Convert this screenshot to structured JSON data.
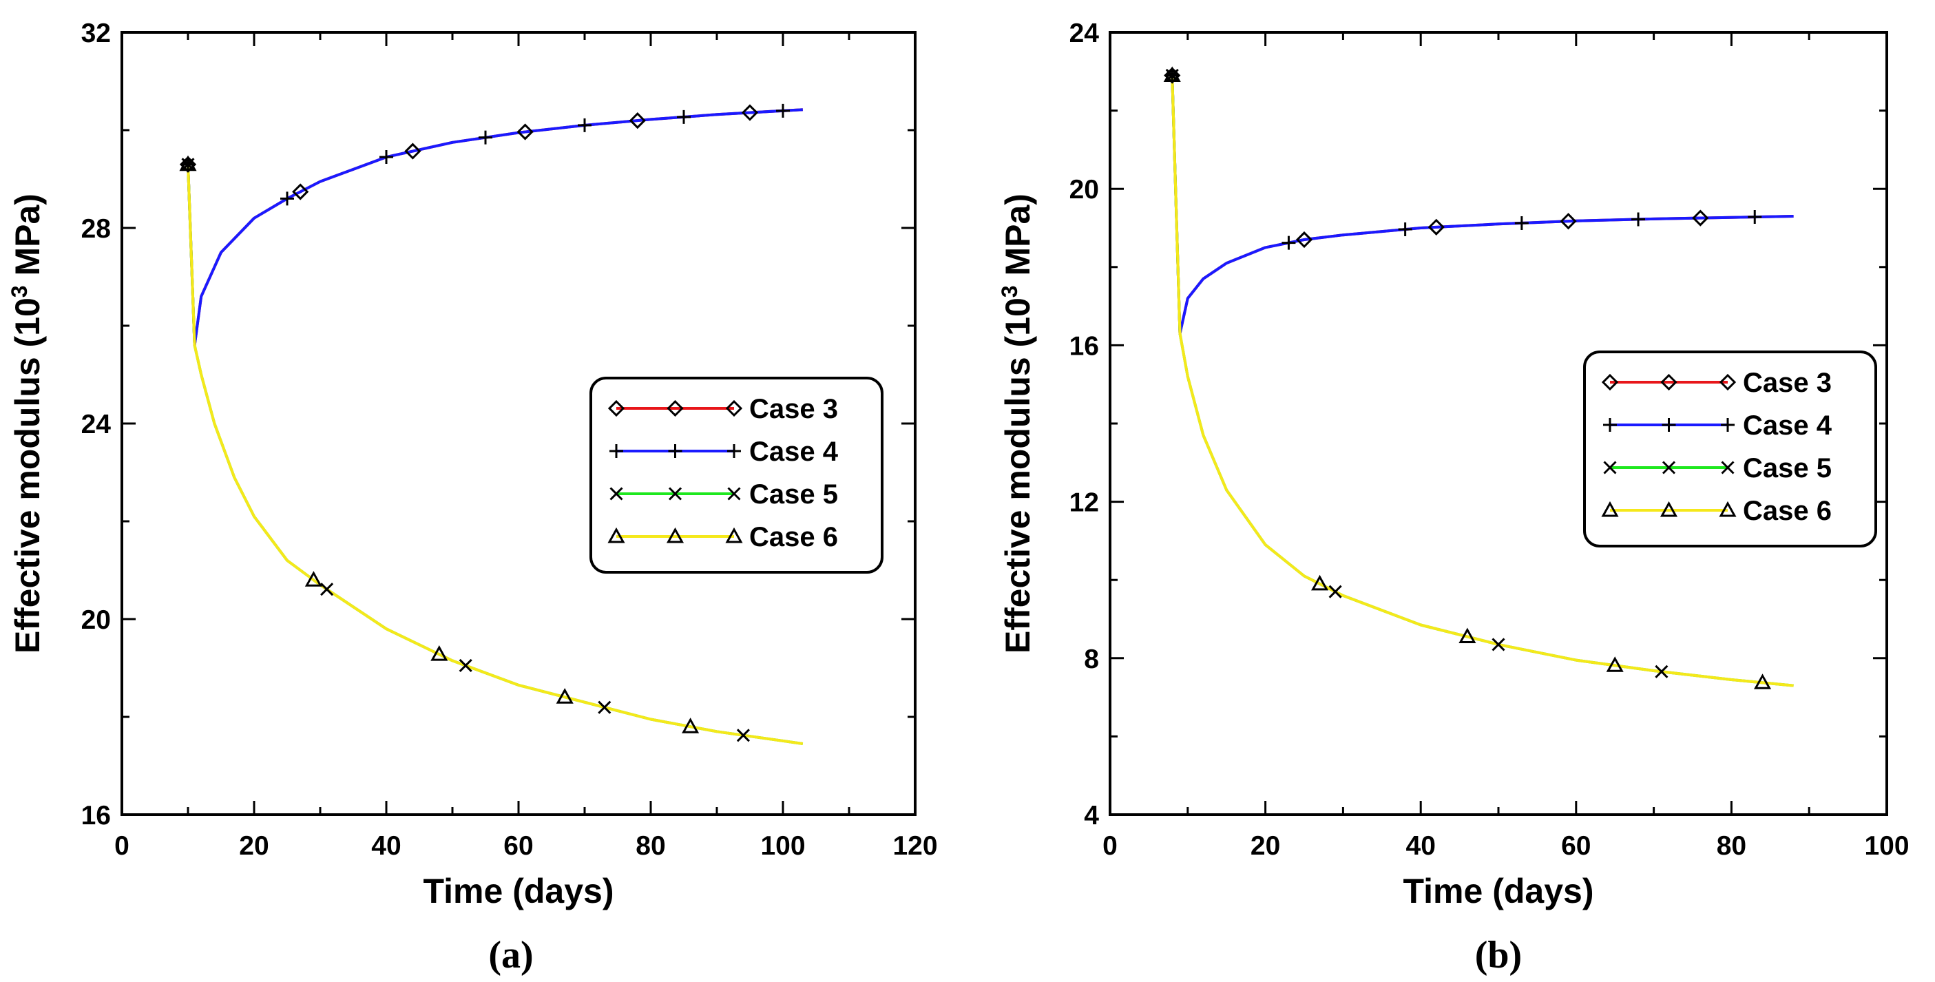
{
  "chart_data": [
    {
      "type": "line",
      "panel_label": "(a)",
      "xlabel": "Time (days)",
      "ylabel": "Effective modulus (10³ MPa)",
      "ylabel_parts": {
        "base": "Effective modulus (10",
        "sup": "3",
        "tail": " MPa)"
      },
      "xlim": [
        0,
        120
      ],
      "ylim": [
        16,
        32
      ],
      "xticks": [
        0,
        20,
        40,
        60,
        80,
        100,
        120
      ],
      "yticks": [
        16,
        20,
        24,
        28,
        32
      ],
      "legend_position": "center-right",
      "series": [
        {
          "name": "Case 3",
          "color": "#e8161a",
          "marker": "diamond",
          "points": [
            [
              10,
              29.3
            ],
            [
              11,
              25.6
            ],
            [
              12,
              26.6
            ],
            [
              15,
              27.5
            ],
            [
              20,
              28.2
            ],
            [
              25,
              28.6
            ],
            [
              30,
              28.95
            ],
            [
              40,
              29.45
            ],
            [
              50,
              29.75
            ],
            [
              60,
              29.95
            ],
            [
              70,
              30.1
            ],
            [
              80,
              30.22
            ],
            [
              90,
              30.32
            ],
            [
              103,
              30.42
            ]
          ],
          "marker_x": [
            27,
            44,
            61,
            78,
            95
          ]
        },
        {
          "name": "Case 4",
          "color": "#1a1aff",
          "marker": "plus",
          "points": [
            [
              10,
              29.3
            ],
            [
              11,
              25.6
            ],
            [
              12,
              26.6
            ],
            [
              15,
              27.5
            ],
            [
              20,
              28.2
            ],
            [
              25,
              28.6
            ],
            [
              30,
              28.95
            ],
            [
              40,
              29.45
            ],
            [
              50,
              29.75
            ],
            [
              60,
              29.95
            ],
            [
              70,
              30.1
            ],
            [
              80,
              30.22
            ],
            [
              90,
              30.32
            ],
            [
              103,
              30.42
            ]
          ],
          "marker_x": [
            25,
            40,
            55,
            70,
            85,
            100
          ]
        },
        {
          "name": "Case 5",
          "color": "#1ee81e",
          "marker": "x",
          "points": [
            [
              10,
              29.3
            ],
            [
              11,
              25.6
            ],
            [
              12,
              25.0
            ],
            [
              14,
              24.0
            ],
            [
              17,
              22.9
            ],
            [
              20,
              22.1
            ],
            [
              25,
              21.2
            ],
            [
              30,
              20.7
            ],
            [
              40,
              19.8
            ],
            [
              50,
              19.15
            ],
            [
              60,
              18.65
            ],
            [
              70,
              18.3
            ],
            [
              80,
              17.95
            ],
            [
              90,
              17.7
            ],
            [
              103,
              17.45
            ]
          ],
          "marker_x": [
            31,
            52,
            73,
            94
          ]
        },
        {
          "name": "Case 6",
          "color": "#f5e81a",
          "marker": "triangle",
          "points": [
            [
              10,
              29.3
            ],
            [
              11,
              25.6
            ],
            [
              12,
              25.0
            ],
            [
              14,
              24.0
            ],
            [
              17,
              22.9
            ],
            [
              20,
              22.1
            ],
            [
              25,
              21.2
            ],
            [
              30,
              20.7
            ],
            [
              40,
              19.8
            ],
            [
              50,
              19.15
            ],
            [
              60,
              18.65
            ],
            [
              70,
              18.3
            ],
            [
              80,
              17.95
            ],
            [
              90,
              17.7
            ],
            [
              103,
              17.45
            ]
          ],
          "marker_x": [
            29,
            48,
            67,
            86
          ]
        }
      ]
    },
    {
      "type": "line",
      "panel_label": "(b)",
      "xlabel": "Time (days)",
      "ylabel": "Effective modulus (10³ MPa)",
      "ylabel_parts": {
        "base": "Effective modulus (10",
        "sup": "3",
        "tail": " MPa)"
      },
      "xlim": [
        0,
        100
      ],
      "ylim": [
        4,
        24
      ],
      "xticks": [
        0,
        20,
        40,
        60,
        80,
        100
      ],
      "yticks": [
        4,
        8,
        12,
        16,
        20,
        24
      ],
      "legend_position": "center-right",
      "series": [
        {
          "name": "Case 3",
          "color": "#e8161a",
          "marker": "diamond",
          "points": [
            [
              8,
              22.9
            ],
            [
              9,
              16.3
            ],
            [
              10,
              17.2
            ],
            [
              12,
              17.7
            ],
            [
              15,
              18.1
            ],
            [
              20,
              18.5
            ],
            [
              25,
              18.7
            ],
            [
              30,
              18.82
            ],
            [
              40,
              19.0
            ],
            [
              50,
              19.1
            ],
            [
              60,
              19.18
            ],
            [
              70,
              19.23
            ],
            [
              80,
              19.27
            ],
            [
              88,
              19.3
            ]
          ],
          "marker_x": [
            25,
            42,
            59,
            76
          ]
        },
        {
          "name": "Case 4",
          "color": "#1a1aff",
          "marker": "plus",
          "points": [
            [
              8,
              22.9
            ],
            [
              9,
              16.3
            ],
            [
              10,
              17.2
            ],
            [
              12,
              17.7
            ],
            [
              15,
              18.1
            ],
            [
              20,
              18.5
            ],
            [
              25,
              18.7
            ],
            [
              30,
              18.82
            ],
            [
              40,
              19.0
            ],
            [
              50,
              19.1
            ],
            [
              60,
              19.18
            ],
            [
              70,
              19.23
            ],
            [
              80,
              19.27
            ],
            [
              88,
              19.3
            ]
          ],
          "marker_x": [
            23,
            38,
            53,
            68,
            83
          ]
        },
        {
          "name": "Case 5",
          "color": "#1ee81e",
          "marker": "x",
          "points": [
            [
              8,
              22.9
            ],
            [
              9,
              16.3
            ],
            [
              10,
              15.2
            ],
            [
              12,
              13.7
            ],
            [
              15,
              12.3
            ],
            [
              20,
              10.9
            ],
            [
              25,
              10.1
            ],
            [
              30,
              9.6
            ],
            [
              40,
              8.85
            ],
            [
              50,
              8.35
            ],
            [
              60,
              7.95
            ],
            [
              70,
              7.68
            ],
            [
              80,
              7.45
            ],
            [
              88,
              7.3
            ]
          ],
          "marker_x": [
            29,
            50,
            71
          ]
        },
        {
          "name": "Case 6",
          "color": "#f5e81a",
          "marker": "triangle",
          "points": [
            [
              8,
              22.9
            ],
            [
              9,
              16.3
            ],
            [
              10,
              15.2
            ],
            [
              12,
              13.7
            ],
            [
              15,
              12.3
            ],
            [
              20,
              10.9
            ],
            [
              25,
              10.1
            ],
            [
              30,
              9.6
            ],
            [
              40,
              8.85
            ],
            [
              50,
              8.35
            ],
            [
              60,
              7.95
            ],
            [
              70,
              7.68
            ],
            [
              80,
              7.45
            ],
            [
              88,
              7.3
            ]
          ],
          "marker_x": [
            27,
            46,
            65,
            84
          ]
        }
      ]
    }
  ]
}
